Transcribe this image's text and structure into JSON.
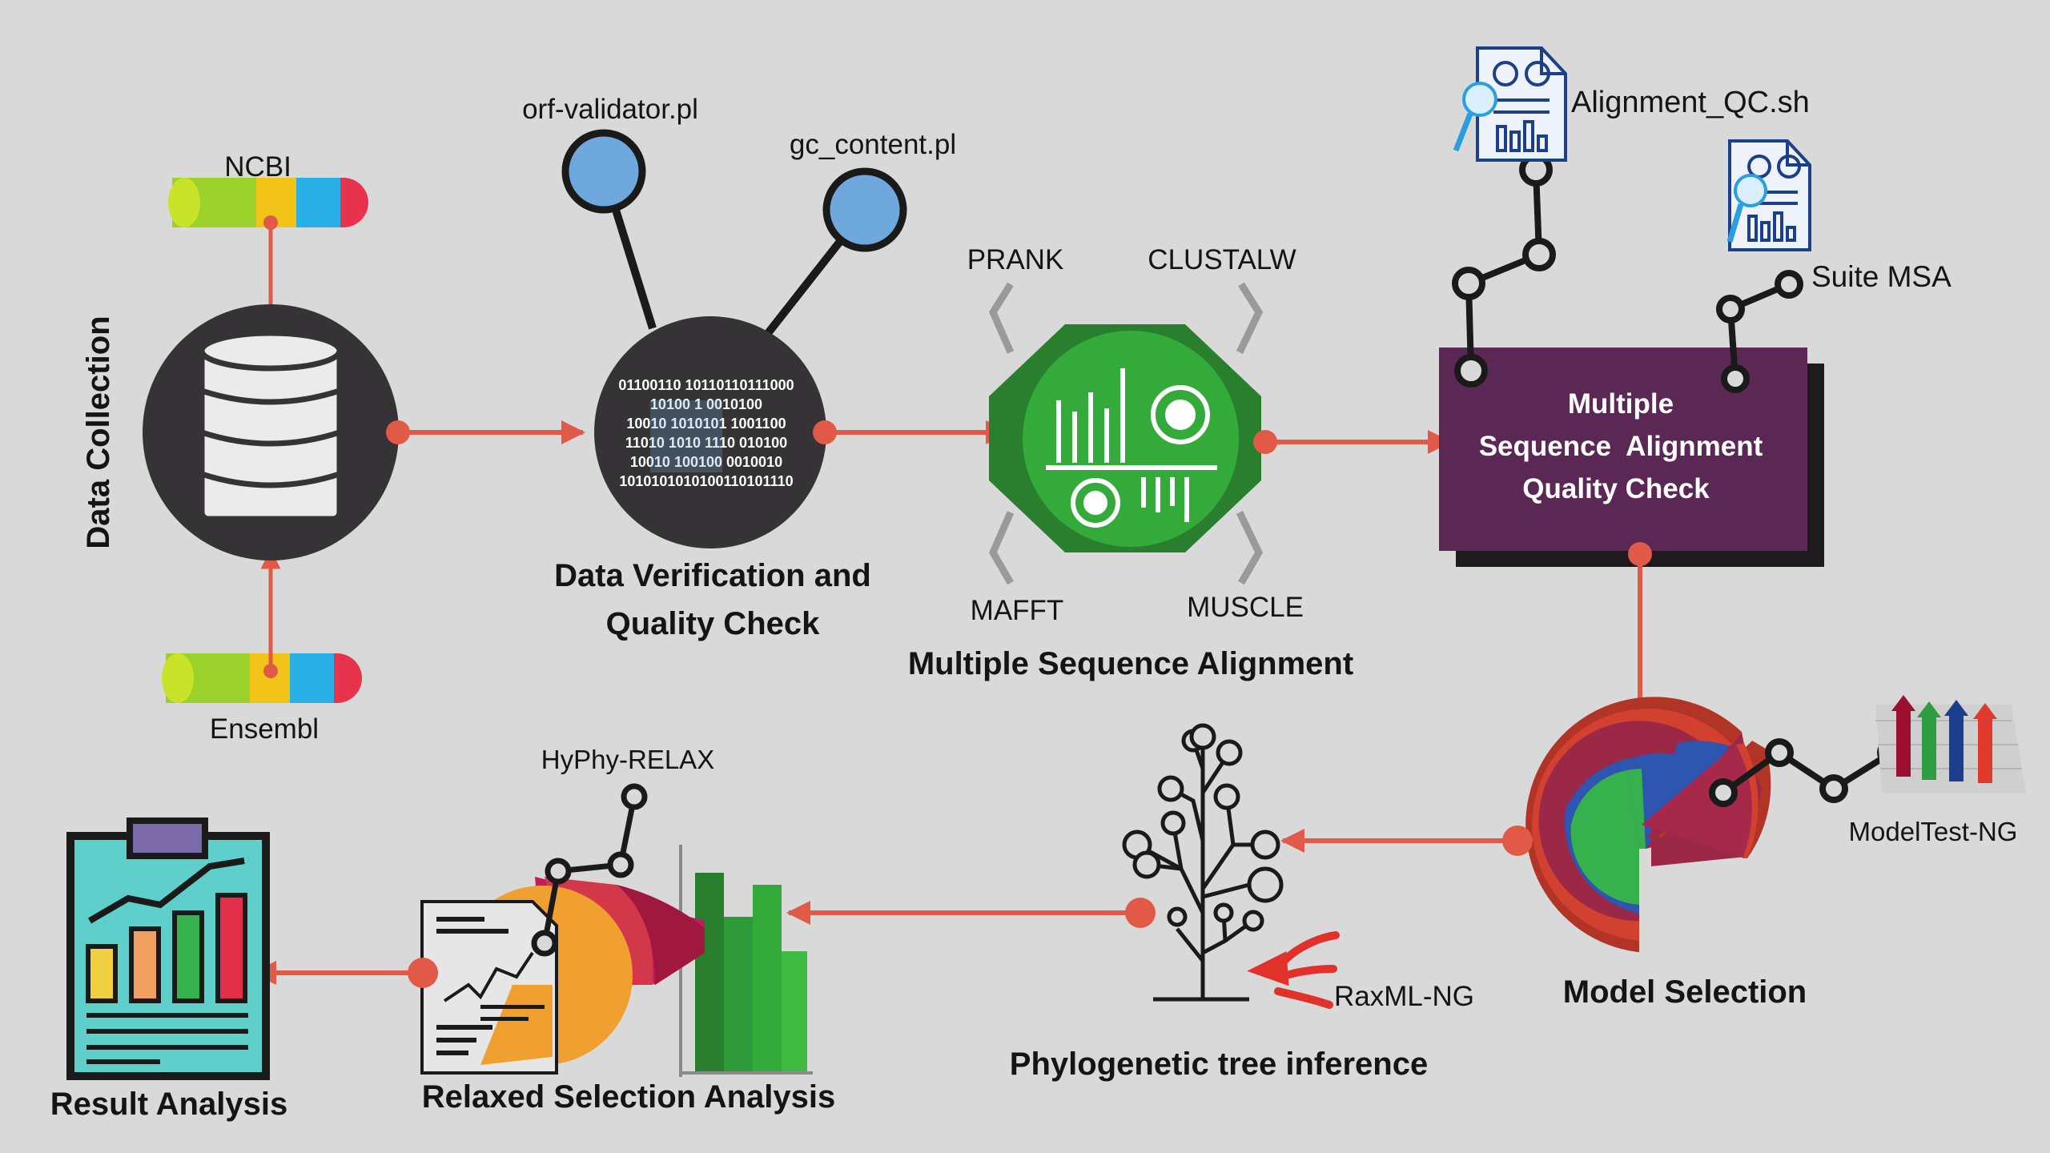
{
  "data_collection": {
    "title": "Data Collection",
    "sources": [
      "NCBI",
      "Ensembl"
    ]
  },
  "verification": {
    "title_line1": "Data Verification and",
    "title_line2": "Quality Check",
    "scripts": [
      "orf-validator.pl",
      "gc_content.pl"
    ],
    "binary_rows": [
      "01100110 10110110111000",
      "10100 1 0010100",
      "10010 1010101 1001100",
      "11010 1010 1110 010100",
      "10010 100100 0010010",
      "1010101010100110101110"
    ]
  },
  "msa": {
    "title": "Multiple Sequence Alignment",
    "tools": [
      "PRANK",
      "CLUSTALW",
      "MAFFT",
      "MUSCLE"
    ]
  },
  "msa_qc": {
    "lines": [
      "Multiple",
      "Sequence  Alignment",
      "Quality Check"
    ],
    "scripts": [
      "Alignment_QC.sh",
      "Suite MSA"
    ],
    "colors": {
      "box": "#5b2754",
      "shadow": "#1e1a1d"
    }
  },
  "model_selection": {
    "title": "Model Selection",
    "tool": "ModelTest-NG"
  },
  "tree_inference": {
    "title": "Phylogenetic tree inference",
    "tool": "RaxML-NG"
  },
  "relaxed_selection": {
    "title": "Relaxed Selection Analysis",
    "tool": "HyPhy-RELAX"
  },
  "result_analysis": {
    "title": "Result Analysis"
  },
  "colors": {
    "arrow": "#e05a47",
    "node_dark": "#353335",
    "accent_blue": "#6fa8dc",
    "msa_green": "#33aa3a"
  },
  "icons": [
    "database-icon",
    "binary-data-icon",
    "alignment-chart-icon",
    "report-document-icon",
    "bar-chart-3d-icon",
    "pie-chart-icon",
    "tree-icon",
    "document-chart-icon",
    "clipboard-chart-icon",
    "sequence-bar-icon"
  ]
}
